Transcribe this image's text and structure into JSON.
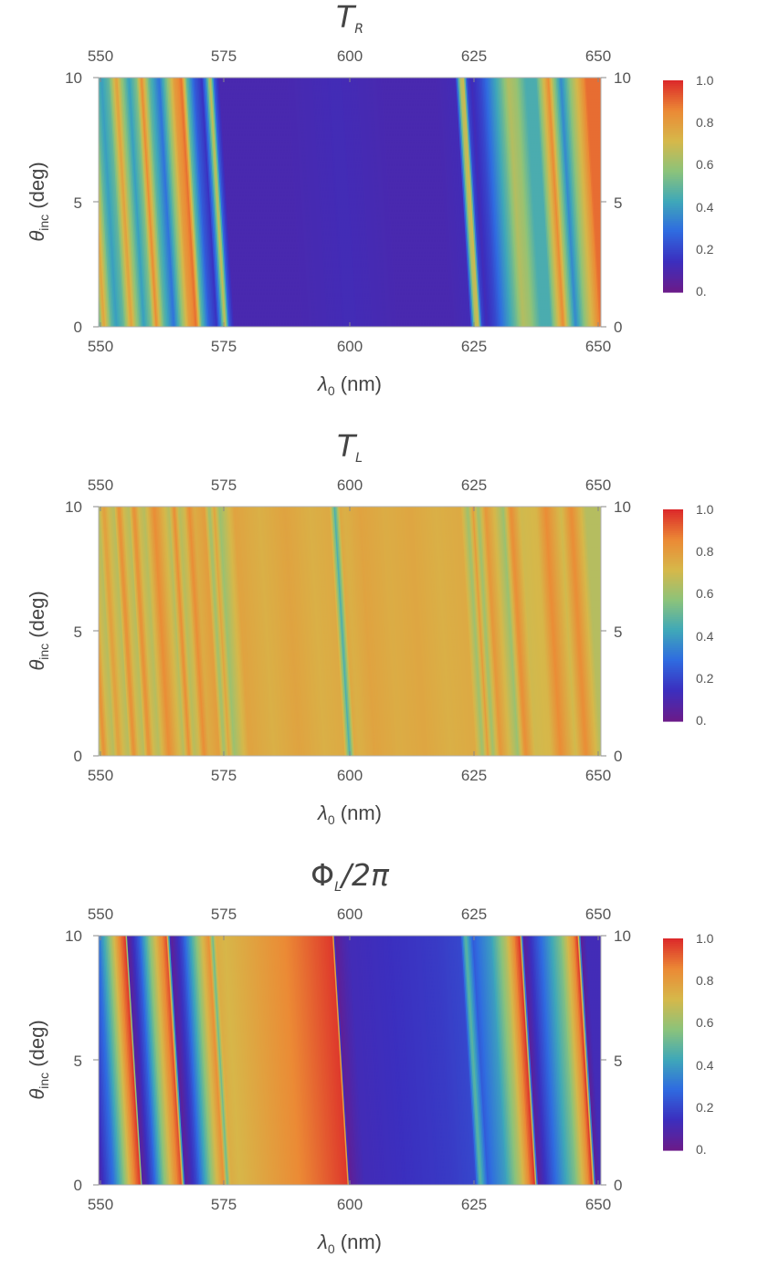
{
  "colormap": [
    "#6a1b8a",
    "#3b2fbf",
    "#2f6be0",
    "#3fa8b8",
    "#8cc37a",
    "#d6b84a",
    "#eb8a35",
    "#dc2a2a"
  ],
  "chart_data": [
    {
      "type": "heatmap",
      "id": "TR",
      "title": "T",
      "title_sub": "R",
      "x_ticks": [
        "550",
        "575",
        "600",
        "625",
        "650"
      ],
      "y_ticks": [
        "0",
        "5",
        "10"
      ],
      "xlabel": "λ",
      "xlabel_sub": "0",
      "xlabel_unit": " (nm)",
      "ylabel": "θ",
      "ylabel_sub": "inc",
      "ylabel_unit": " (deg)",
      "xlim": [
        550,
        650
      ],
      "ylim": [
        0,
        10
      ],
      "colorbar_ticks": [
        "0.",
        "0.2",
        "0.4",
        "0.6",
        "0.8",
        "1.0"
      ],
      "colorbar_range": [
        0,
        1
      ],
      "tilt_nm_per_10deg": -3,
      "profile_lambda": [
        550,
        551,
        552.5,
        553.5,
        555,
        556.5,
        557.5,
        559,
        560.5,
        561.5,
        563,
        565,
        566.5,
        568,
        569.5,
        570.5,
        572,
        573.5,
        574.3,
        575.2,
        576,
        577,
        580,
        590,
        600,
        610,
        620,
        624,
        625,
        625.6,
        626.3,
        627.2,
        629,
        631,
        633,
        634.5,
        636,
        638,
        640,
        641.5,
        642.5,
        643.5,
        645,
        647,
        650
      ],
      "profile_value": [
        0.45,
        0.8,
        0.5,
        0.4,
        0.5,
        0.8,
        0.6,
        0.4,
        0.55,
        0.85,
        0.5,
        0.3,
        0.55,
        0.8,
        0.9,
        0.5,
        0.25,
        0.15,
        0.35,
        0.7,
        0.25,
        0.1,
        0.1,
        0.1,
        0.12,
        0.1,
        0.1,
        0.12,
        0.65,
        0.7,
        0.2,
        0.12,
        0.2,
        0.35,
        0.5,
        0.65,
        0.6,
        0.45,
        0.45,
        0.7,
        0.85,
        0.6,
        0.35,
        0.6,
        0.9
      ]
    },
    {
      "type": "heatmap",
      "id": "TL",
      "title": "T",
      "title_sub": "L",
      "x_ticks": [
        "550",
        "575",
        "600",
        "625",
        "650"
      ],
      "y_ticks": [
        "0",
        "5",
        "10"
      ],
      "xlabel": "λ",
      "xlabel_sub": "0",
      "xlabel_unit": " (nm)",
      "ylabel": "θ",
      "ylabel_sub": "inc",
      "ylabel_unit": " (deg)",
      "xlim": [
        550,
        650
      ],
      "ylim": [
        0,
        10
      ],
      "colorbar_ticks": [
        "0.",
        "0.2",
        "0.4",
        "0.6",
        "0.8",
        "1.0"
      ],
      "colorbar_range": [
        0,
        1
      ],
      "tilt_nm_per_10deg": -3,
      "profile_lambda": [
        550,
        551,
        552,
        553,
        554,
        555,
        556,
        557,
        558,
        559,
        560,
        561,
        562,
        564,
        566,
        567,
        568,
        569,
        570,
        571,
        572,
        574,
        575,
        576,
        577,
        580,
        585,
        590,
        595,
        599,
        600,
        601,
        602,
        605,
        610,
        615,
        620,
        625,
        626.5,
        627.5,
        628.5,
        630,
        632,
        633.5,
        635,
        637,
        640,
        642,
        645,
        647,
        650
      ],
      "profile_value": [
        0.6,
        0.85,
        0.7,
        0.65,
        0.8,
        0.7,
        0.65,
        0.85,
        0.7,
        0.65,
        0.85,
        0.7,
        0.65,
        0.85,
        0.72,
        0.65,
        0.85,
        0.65,
        0.7,
        0.85,
        0.75,
        0.8,
        0.6,
        0.78,
        0.6,
        0.78,
        0.74,
        0.78,
        0.74,
        0.76,
        0.45,
        0.76,
        0.74,
        0.78,
        0.75,
        0.77,
        0.74,
        0.76,
        0.6,
        0.8,
        0.6,
        0.82,
        0.7,
        0.6,
        0.85,
        0.7,
        0.72,
        0.85,
        0.7,
        0.85,
        0.65
      ]
    },
    {
      "type": "heatmap",
      "id": "PhiL",
      "title": "Φ",
      "title_sub": "L",
      "title_tail": "/2π",
      "x_ticks": [
        "550",
        "575",
        "600",
        "625",
        "650"
      ],
      "y_ticks": [
        "0",
        "5",
        "10"
      ],
      "xlabel": "λ",
      "xlabel_sub": "0",
      "xlabel_unit": " (nm)",
      "ylabel": "θ",
      "ylabel_sub": "inc",
      "ylabel_unit": " (deg)",
      "xlim": [
        550,
        650
      ],
      "ylim": [
        0,
        10
      ],
      "colorbar_ticks": [
        "0.",
        "0.2",
        "0.4",
        "0.6",
        "0.8",
        "1.0"
      ],
      "colorbar_range": [
        0,
        1
      ],
      "tilt_nm_per_10deg": -3,
      "profile_lambda": [
        550,
        551,
        553,
        555,
        557,
        558.3,
        558.8,
        559.5,
        561,
        563,
        565,
        566.5,
        567.3,
        568,
        569.5,
        571.5,
        573.5,
        575,
        575.6,
        576.3,
        578,
        585,
        592,
        599.6,
        600,
        600.6,
        601.5,
        603,
        610,
        620,
        625,
        626,
        627.5,
        628.5,
        631,
        634,
        636,
        636.8,
        637.5,
        639,
        642,
        645,
        647.5,
        648.3,
        649,
        650
      ],
      "profile_value": [
        0.06,
        0.15,
        0.3,
        0.55,
        0.85,
        0.98,
        0.03,
        0.1,
        0.25,
        0.55,
        0.8,
        0.95,
        0.03,
        0.08,
        0.2,
        0.45,
        0.7,
        0.85,
        0.5,
        0.75,
        0.72,
        0.8,
        0.88,
        0.98,
        0.02,
        0.05,
        0.08,
        0.12,
        0.14,
        0.17,
        0.2,
        0.5,
        0.25,
        0.3,
        0.4,
        0.65,
        0.9,
        0.98,
        0.04,
        0.15,
        0.35,
        0.55,
        0.85,
        0.98,
        0.04,
        0.12
      ]
    }
  ]
}
